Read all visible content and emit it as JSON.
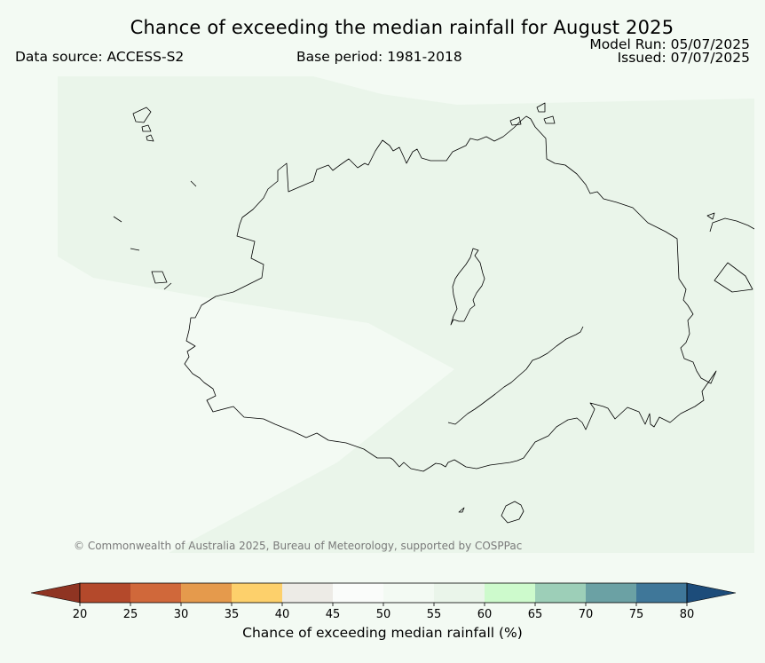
{
  "header": {
    "title": "Chance of exceeding the median rainfall for August 2025",
    "data_source": "Data source: ACCESS-S2",
    "base_period": "Base period: 1981-2018",
    "model_run": "Model Run: 05/07/2025",
    "issued": "Issued: 07/07/2025"
  },
  "map": {
    "copyright": "© Commonwealth of Australia 2025, Bureau of Meteorology, supported by COSPPac",
    "region_colors": {
      "band_50_55": "#f3faf3",
      "band_55_60": "#eaf5ea",
      "coastline": "#000000"
    }
  },
  "legend": {
    "label": "Chance of exceeding median rainfall (%)",
    "ticks": [
      "20",
      "25",
      "30",
      "35",
      "40",
      "45",
      "50",
      "55",
      "60",
      "65",
      "70",
      "75",
      "80"
    ],
    "bins": [
      {
        "range": "<20",
        "color": "#8f3422"
      },
      {
        "range": "20-25",
        "color": "#b4492b"
      },
      {
        "range": "25-30",
        "color": "#d0683a"
      },
      {
        "range": "30-35",
        "color": "#e59a4c"
      },
      {
        "range": "35-40",
        "color": "#fdd06b"
      },
      {
        "range": "40-45",
        "color": "#edebe6"
      },
      {
        "range": "45-50",
        "color": "#fafcfa"
      },
      {
        "range": "50-55",
        "color": "#f3faf3"
      },
      {
        "range": "55-60",
        "color": "#eaf5ea"
      },
      {
        "range": "60-65",
        "color": "#cdfacc"
      },
      {
        "range": "65-70",
        "color": "#9dcfb8"
      },
      {
        "range": "70-75",
        "color": "#6ba1a4"
      },
      {
        "range": "75-80",
        "color": "#3f7799"
      },
      {
        "range": ">80",
        "color": "#1c4c7a"
      }
    ]
  }
}
